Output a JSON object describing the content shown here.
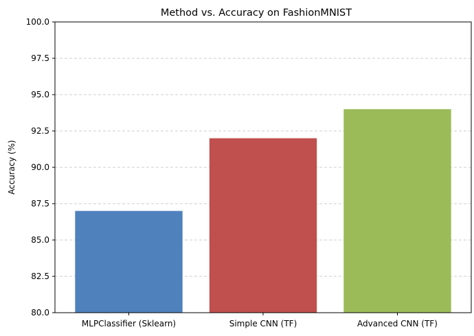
{
  "chart_data": {
    "type": "bar",
    "title": "Method vs. Accuracy on FashionMNIST",
    "xlabel": "",
    "ylabel": "Accuracy (%)",
    "categories": [
      "MLPClassifier (Sklearn)",
      "Simple CNN (TF)",
      "Advanced CNN (TF)"
    ],
    "values": [
      87.0,
      92.0,
      94.0
    ],
    "colors": [
      "#4f81bd",
      "#c0504d",
      "#9bbb59"
    ],
    "ylim": [
      80,
      100
    ],
    "yticks": [
      "80.0",
      "82.5",
      "85.0",
      "87.5",
      "90.0",
      "92.5",
      "95.0",
      "97.5",
      "100.0"
    ],
    "grid": "y-dashed",
    "legend": "none"
  }
}
